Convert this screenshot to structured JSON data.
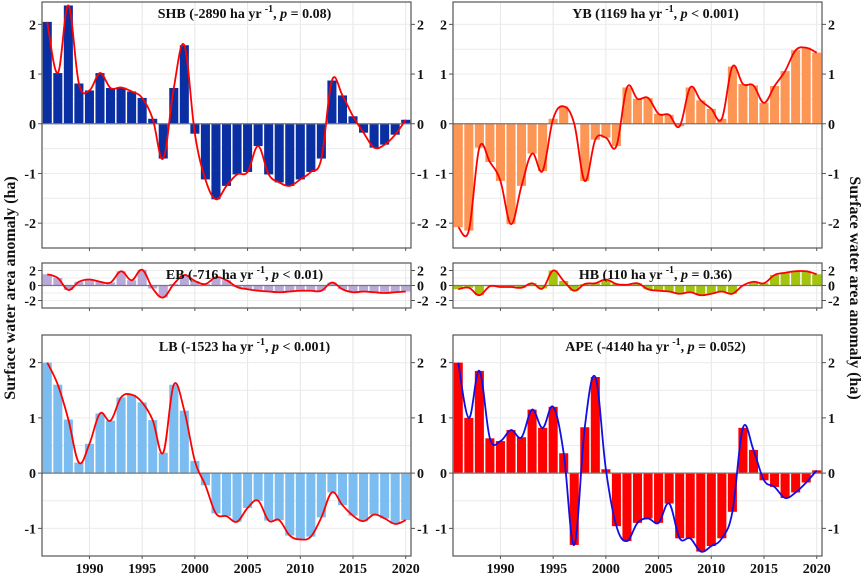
{
  "figure": {
    "ylabel_left": "Surface water area anomaly (ha)",
    "ylabel_right": "Surface water area anomaly (ha)"
  },
  "chart_data": [
    {
      "type": "bar",
      "id": "SHB",
      "title_name": "SHB",
      "title_rate": "-2890 ha yr",
      "title_sup": "-1",
      "title_p_label": "p",
      "title_p_value": "= 0.08)",
      "bar_color": "#0a2fa3",
      "line_color": "#ff0000",
      "x": [
        1986,
        1987,
        1988,
        1989,
        1990,
        1991,
        1992,
        1993,
        1994,
        1995,
        1996,
        1997,
        1998,
        1999,
        2000,
        2001,
        2002,
        2003,
        2004,
        2005,
        2006,
        2007,
        2008,
        2009,
        2010,
        2011,
        2012,
        2013,
        2014,
        2015,
        2016,
        2017,
        2018,
        2019,
        2020
      ],
      "values": [
        2.05,
        1.02,
        2.38,
        0.81,
        0.67,
        1.02,
        0.72,
        0.73,
        0.65,
        0.52,
        0.1,
        -0.7,
        0.72,
        1.58,
        -0.2,
        -1.12,
        -1.52,
        -1.25,
        -1.02,
        -0.97,
        -0.45,
        -1.02,
        -1.18,
        -1.25,
        -1.12,
        -0.97,
        -0.7,
        0.87,
        0.57,
        0.15,
        -0.18,
        -0.48,
        -0.42,
        -0.22,
        0.08
      ],
      "ylim": [
        -2.5,
        2.45
      ],
      "yticks": [
        "-2",
        "-1",
        "0",
        "1",
        "2"
      ],
      "ytick_values": [
        -2,
        -1,
        0,
        1,
        2
      ],
      "xticks": [
        "1990",
        "1995",
        "2000",
        "2005",
        "2010",
        "2015",
        "2020"
      ],
      "xtick_values": [
        1990,
        1995,
        2000,
        2005,
        2010,
        2015,
        2020
      ],
      "show_xtick_labels": false,
      "grid": true
    },
    {
      "type": "bar",
      "id": "YB",
      "title_name": "YB",
      "title_rate": "1169 ha yr",
      "title_sup": "-1",
      "title_p_label": "p",
      "title_p_value": "< 0.001)",
      "bar_color": "#fd9555",
      "line_color": "#ff0000",
      "x": [
        1986,
        1987,
        1988,
        1989,
        1990,
        1991,
        1992,
        1993,
        1994,
        1995,
        1996,
        1997,
        1998,
        1999,
        2000,
        2001,
        2002,
        2003,
        2004,
        2005,
        2006,
        2007,
        2008,
        2009,
        2010,
        2011,
        2012,
        2013,
        2014,
        2015,
        2016,
        2017,
        2018,
        2019,
        2020
      ],
      "values": [
        -2.08,
        -2.15,
        -0.48,
        -0.77,
        -1.15,
        -2.02,
        -1.25,
        -0.6,
        -0.95,
        0.1,
        0.35,
        0.0,
        -1.15,
        -0.32,
        -0.28,
        -0.45,
        0.73,
        0.5,
        0.52,
        0.2,
        0.18,
        -0.05,
        0.73,
        0.47,
        0.3,
        0.1,
        1.15,
        0.8,
        0.77,
        0.42,
        0.76,
        1.06,
        1.48,
        1.53,
        1.43
      ],
      "ylim": [
        -2.5,
        2.45
      ],
      "yticks": [
        "-2",
        "-1",
        "0",
        "1",
        "2"
      ],
      "ytick_values": [
        -2,
        -1,
        0,
        1,
        2
      ],
      "xticks": [
        "1990",
        "1995",
        "2000",
        "2005",
        "2010",
        "2015",
        "2020"
      ],
      "xtick_values": [
        1990,
        1995,
        2000,
        2005,
        2010,
        2015,
        2020
      ],
      "show_xtick_labels": false,
      "grid": true
    },
    {
      "type": "bar",
      "id": "EB",
      "title_name": "EB",
      "title_rate": "-716 ha yr",
      "title_sup": "-1",
      "title_p_label": "p",
      "title_p_value": "< 0.01)",
      "bar_color": "#b9a9d8",
      "line_color": "#ff0000",
      "x": [
        1986,
        1987,
        1988,
        1989,
        1990,
        1991,
        1992,
        1993,
        1994,
        1995,
        1996,
        1997,
        1998,
        1999,
        2000,
        2001,
        2002,
        2003,
        2004,
        2005,
        2006,
        2007,
        2008,
        2009,
        2010,
        2011,
        2012,
        2013,
        2014,
        2015,
        2016,
        2017,
        2018,
        2019,
        2020
      ],
      "values": [
        1.5,
        1.0,
        -0.6,
        0.5,
        0.8,
        0.5,
        0.4,
        1.9,
        0.7,
        2.1,
        -0.4,
        -1.6,
        0.2,
        1.4,
        0.6,
        0.2,
        1.1,
        0.7,
        -0.2,
        -0.5,
        -0.7,
        -0.8,
        -0.9,
        -0.8,
        -0.7,
        -0.7,
        -0.7,
        0.4,
        -0.5,
        -0.9,
        -0.8,
        -0.9,
        -1.0,
        -0.9,
        -0.8
      ],
      "ylim": [
        -3.0,
        3.0
      ],
      "yticks": [
        "-2",
        "0",
        "2"
      ],
      "ytick_values": [
        -2,
        0,
        2
      ],
      "xticks": [
        "1990",
        "1995",
        "2000",
        "2005",
        "2010",
        "2015",
        "2020"
      ],
      "xtick_values": [
        1990,
        1995,
        2000,
        2005,
        2010,
        2015,
        2020
      ],
      "show_xtick_labels": false,
      "grid": true
    },
    {
      "type": "bar",
      "id": "HB",
      "title_name": "HB",
      "title_rate": "110 ha yr",
      "title_sup": "-1",
      "title_p_label": "p",
      "title_p_value": "= 0.36)",
      "bar_color": "#a2c40c",
      "line_color": "#ff0000",
      "x": [
        1986,
        1987,
        1988,
        1989,
        1990,
        1991,
        1992,
        1993,
        1994,
        1995,
        1996,
        1997,
        1998,
        1999,
        2000,
        2001,
        2002,
        2003,
        2004,
        2005,
        2006,
        2007,
        2008,
        2009,
        2010,
        2011,
        2012,
        2013,
        2014,
        2015,
        2016,
        2017,
        2018,
        2019,
        2020
      ],
      "values": [
        -0.5,
        -0.3,
        -1.3,
        -0.1,
        -0.2,
        -0.2,
        -0.3,
        0.3,
        -0.4,
        2.0,
        0.6,
        -0.7,
        0.2,
        0.3,
        0.8,
        0.2,
        0.1,
        0.3,
        -0.5,
        -0.7,
        -0.8,
        -1.1,
        -0.9,
        -1.3,
        -1.1,
        -0.8,
        -1.1,
        0.0,
        0.5,
        0.3,
        1.4,
        1.7,
        1.9,
        1.9,
        1.5
      ],
      "ylim": [
        -3.0,
        3.0
      ],
      "yticks": [
        "-2",
        "0",
        "2"
      ],
      "ytick_values": [
        -2,
        0,
        2
      ],
      "xticks": [
        "1990",
        "1995",
        "2000",
        "2005",
        "2010",
        "2015",
        "2020"
      ],
      "xtick_values": [
        1990,
        1995,
        2000,
        2005,
        2010,
        2015,
        2020
      ],
      "show_xtick_labels": false,
      "grid": true
    },
    {
      "type": "bar",
      "id": "LB",
      "title_name": "LB",
      "title_rate": "-1523 ha yr",
      "title_sup": "-1",
      "title_p_label": "p",
      "title_p_value": "< 0.001)",
      "bar_color": "#7bbdf0",
      "line_color": "#ff0000",
      "x": [
        1986,
        1987,
        1988,
        1989,
        1990,
        1991,
        1992,
        1993,
        1994,
        1995,
        1996,
        1997,
        1998,
        1999,
        2000,
        2001,
        2002,
        2003,
        2004,
        2005,
        2006,
        2007,
        2008,
        2009,
        2010,
        2011,
        2012,
        2013,
        2014,
        2015,
        2016,
        2017,
        2018,
        2019,
        2020
      ],
      "values": [
        2.0,
        1.6,
        0.97,
        0.19,
        0.53,
        1.08,
        0.95,
        1.37,
        1.42,
        1.28,
        0.96,
        0.37,
        1.6,
        1.13,
        0.22,
        -0.22,
        -0.73,
        -0.78,
        -0.88,
        -0.63,
        -0.5,
        -0.86,
        -0.85,
        -1.13,
        -1.2,
        -1.15,
        -0.8,
        -0.35,
        -0.58,
        -0.77,
        -0.87,
        -0.75,
        -0.82,
        -0.92,
        -0.85
      ],
      "ylim": [
        -1.5,
        2.5
      ],
      "yticks": [
        "-1",
        "0",
        "1",
        "2"
      ],
      "ytick_values": [
        -1,
        0,
        1,
        2
      ],
      "xticks": [
        "1990",
        "1995",
        "2000",
        "2005",
        "2010",
        "2015",
        "2020"
      ],
      "xtick_values": [
        1990,
        1995,
        2000,
        2005,
        2010,
        2015,
        2020
      ],
      "show_xtick_labels": true,
      "grid": true
    },
    {
      "type": "bar",
      "id": "APE",
      "title_name": "APE",
      "title_rate": "-4140 ha yr",
      "title_sup": "-1",
      "title_p_label": "p",
      "title_p_value": "= 0.052)",
      "bar_color": "#ff0000",
      "line_color": "#1010e6",
      "x": [
        1986,
        1987,
        1988,
        1989,
        1990,
        1991,
        1992,
        1993,
        1994,
        1995,
        1996,
        1997,
        1998,
        1999,
        2000,
        2001,
        2002,
        2003,
        2004,
        2005,
        2006,
        2007,
        2008,
        2009,
        2010,
        2011,
        2012,
        2013,
        2014,
        2015,
        2016,
        2017,
        2018,
        2019,
        2020
      ],
      "values": [
        2.0,
        1.0,
        1.85,
        0.63,
        0.58,
        0.78,
        0.65,
        1.15,
        0.82,
        1.2,
        0.36,
        -1.3,
        0.83,
        1.74,
        0.07,
        -0.96,
        -1.23,
        -0.9,
        -0.82,
        -0.9,
        -0.55,
        -1.18,
        -1.18,
        -1.42,
        -1.32,
        -1.18,
        -0.7,
        0.82,
        0.42,
        -0.13,
        -0.25,
        -0.45,
        -0.35,
        -0.17,
        0.05
      ],
      "ylim": [
        -1.5,
        2.5
      ],
      "yticks": [
        "-1",
        "0",
        "1",
        "2"
      ],
      "ytick_values": [
        -1,
        0,
        1,
        2
      ],
      "xticks": [
        "1990",
        "1995",
        "2000",
        "2005",
        "2010",
        "2015",
        "2020"
      ],
      "xtick_values": [
        1990,
        1995,
        2000,
        2005,
        2010,
        2015,
        2020
      ],
      "show_xtick_labels": true,
      "grid": true
    }
  ]
}
